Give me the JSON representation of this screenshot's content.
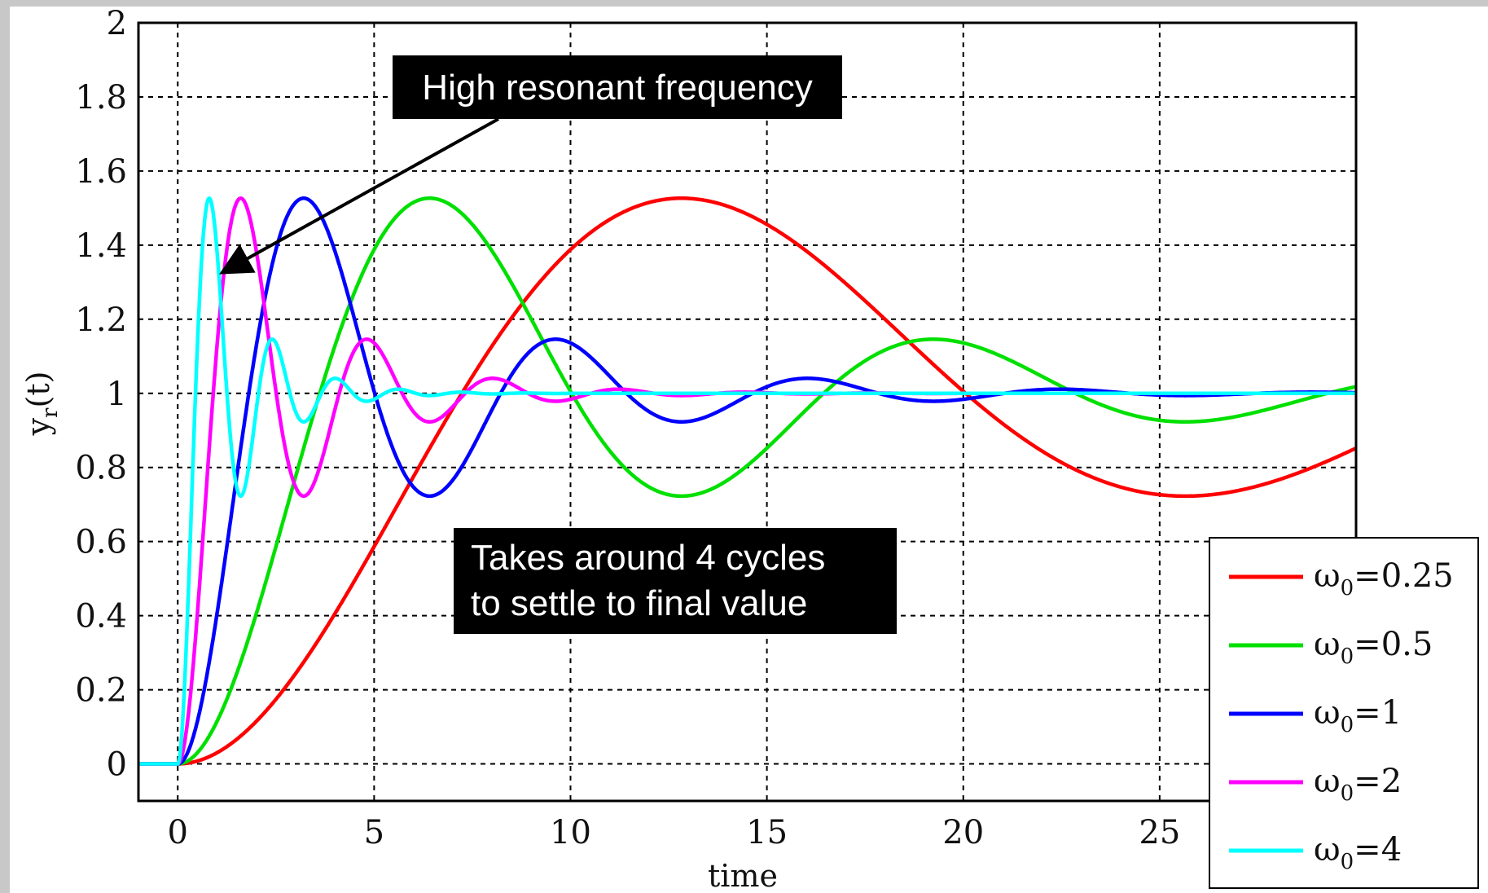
{
  "chart_data": {
    "type": "line",
    "xlabel": "time",
    "ylabel": {
      "main": "y",
      "sub": "r",
      "suffix": "(t)"
    },
    "xlim": [
      -1,
      30
    ],
    "ylim": [
      -0.1,
      2
    ],
    "xticks": [
      0,
      5,
      10,
      15,
      20,
      25
    ],
    "xtick_labels": [
      "0",
      "5",
      "10",
      "15",
      "20",
      "25"
    ],
    "yticks": [
      0,
      0.2,
      0.4,
      0.6,
      0.8,
      1,
      1.2,
      1.4,
      1.6,
      1.8,
      2
    ],
    "ytick_labels": [
      "0",
      "0.2",
      "0.4",
      "0.6",
      "0.8",
      "1",
      "1.2",
      "1.4",
      "1.6",
      "1.8",
      "2"
    ],
    "grid": true,
    "legend_position": "bottom-right",
    "step_time": 0,
    "zeta": 0.2,
    "series": [
      {
        "name": "ω0=0.25",
        "omega0": 0.25,
        "legend": {
          "symbol": "ω",
          "sub": "0",
          "value": "=0.25"
        },
        "color": "#ff0000"
      },
      {
        "name": "ω0=0.5",
        "omega0": 0.5,
        "legend": {
          "symbol": "ω",
          "sub": "0",
          "value": "=0.5"
        },
        "color": "#00e000"
      },
      {
        "name": "ω0=1",
        "omega0": 1,
        "legend": {
          "symbol": "ω",
          "sub": "0",
          "value": "=1"
        },
        "color": "#0000ff"
      },
      {
        "name": "ω0=2",
        "omega0": 2,
        "legend": {
          "symbol": "ω",
          "sub": "0",
          "value": "=2"
        },
        "color": "#ff00ff"
      },
      {
        "name": "ω0=4",
        "omega0": 4,
        "legend": {
          "symbol": "ω",
          "sub": "0",
          "value": "=4"
        },
        "color": "#00ffff"
      }
    ],
    "annotations": [
      {
        "id": "high-resonant",
        "lines": [
          "High resonant frequency"
        ],
        "arrow_target": {
          "x": 1.2,
          "y": 1.33
        }
      },
      {
        "id": "settle",
        "lines": [
          "Takes around 4 cycles",
          "to settle to final value"
        ]
      }
    ]
  }
}
